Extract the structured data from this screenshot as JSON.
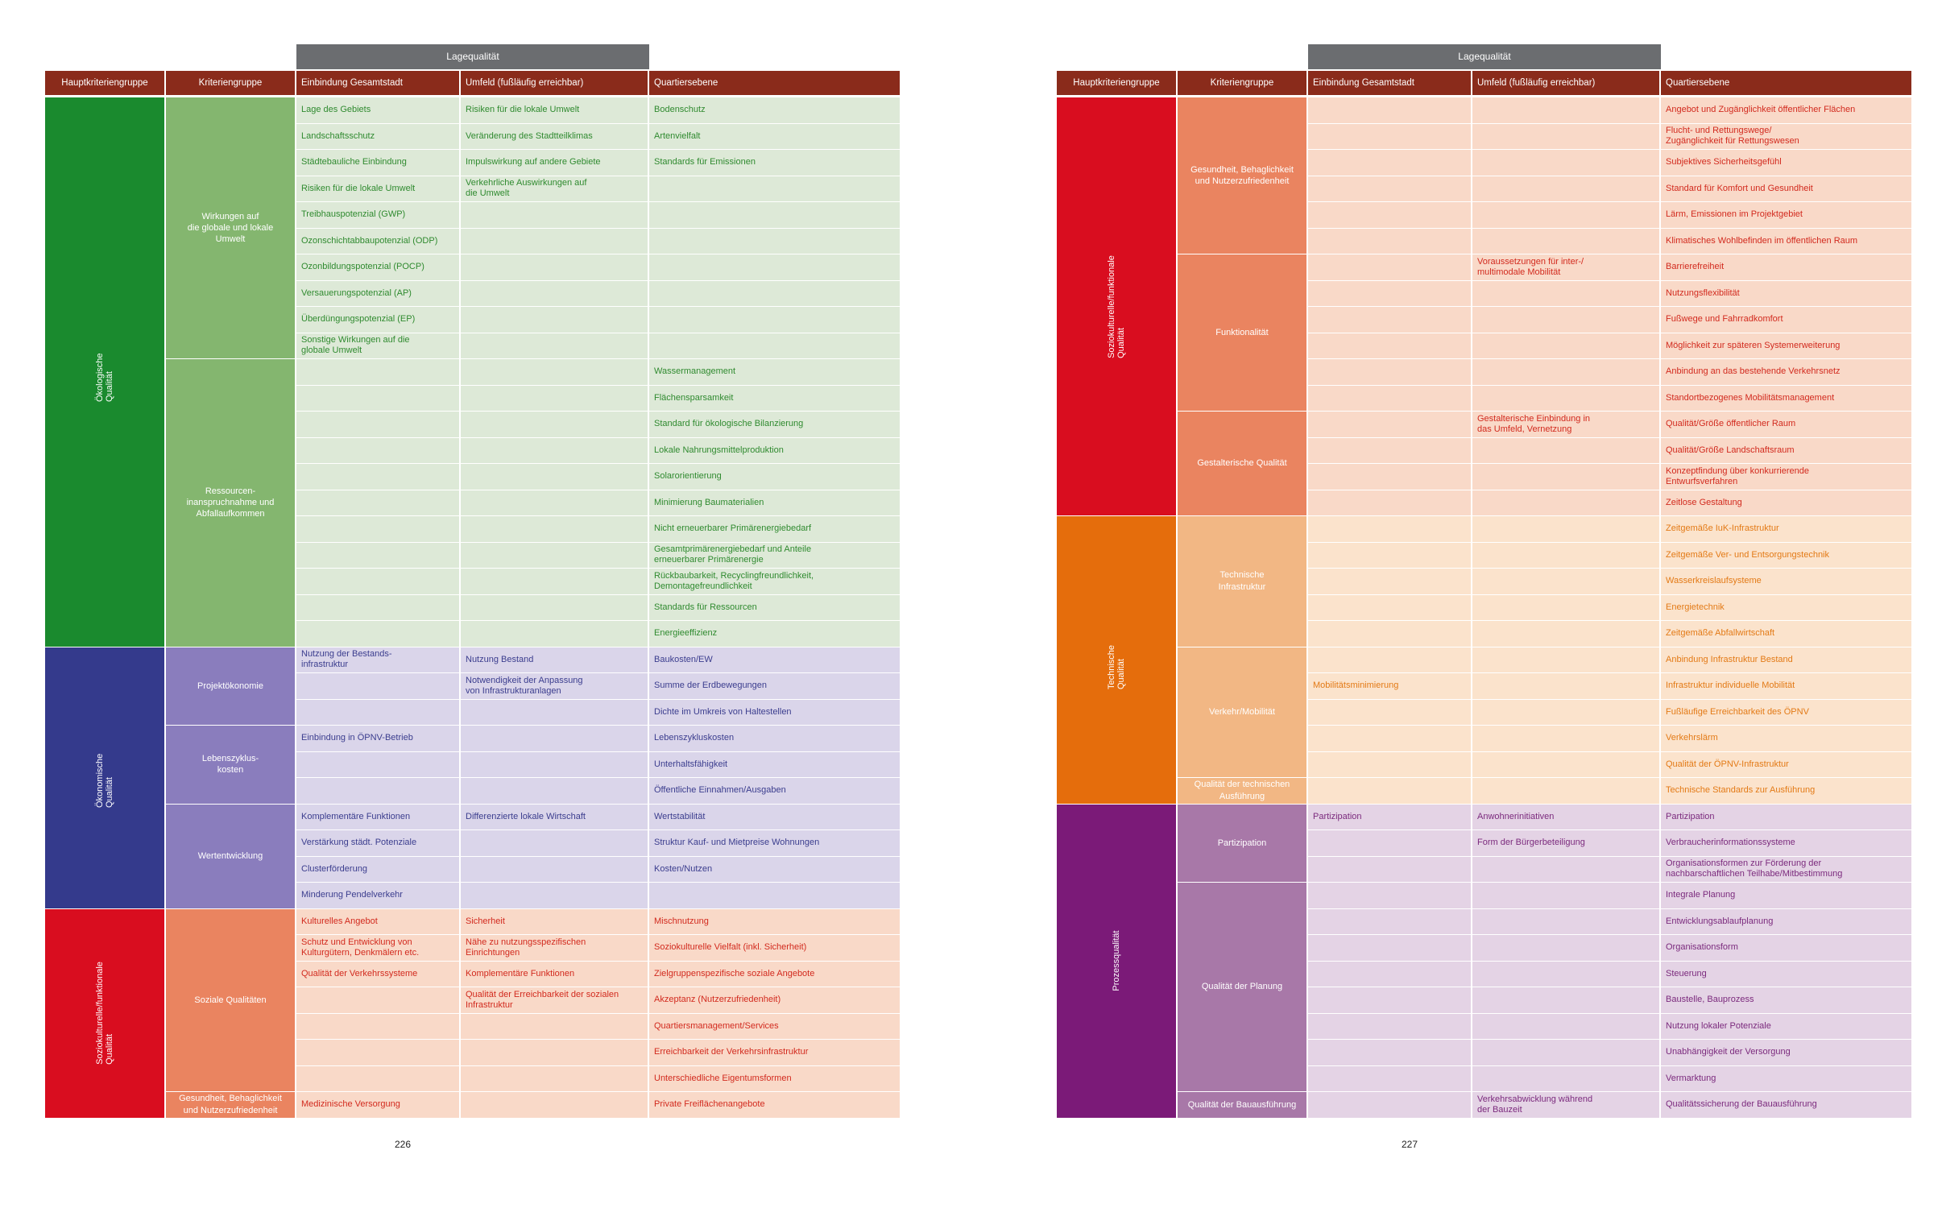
{
  "headers": {
    "lage": "Lagequalität",
    "cols": [
      "Hauptkriteriengruppe",
      "Kriteriengruppe",
      "Einbindung Gesamtstadt",
      "Umfeld (fußläufig erreichbar)",
      "Quartiersebene"
    ]
  },
  "colors": {
    "header_bg": "#8a2b1b",
    "lage_bg": "#6b6d70",
    "oeko": {
      "main": "#1a8a2e",
      "sub": "#84b66f",
      "cell": "#dde9d7",
      "text": "#2f8a2f"
    },
    "oekon": {
      "main": "#343a8c",
      "sub": "#8a7dbd",
      "cell": "#dad5ea",
      "text": "#3b3d8e"
    },
    "sozio": {
      "main": "#d90d1f",
      "sub": "#ea8460",
      "cell": "#f9d9c8",
      "text": "#d22a1e"
    },
    "tech": {
      "main": "#e56d0c",
      "sub": "#f2b784",
      "cell": "#fbe3cc",
      "text": "#e37a16"
    },
    "prozess": {
      "main": "#7b1a78",
      "sub": "#a878a8",
      "cell": "#e4d3e5",
      "text": "#7b2a7d"
    }
  },
  "pages": [
    {
      "number": "226",
      "groups": [
        {
          "name": "Ökologische Qualität",
          "theme": "oeko",
          "subgroups": [
            {
              "name": "Wirkungen auf\ndie globale und lokale\nUmwelt",
              "rows": [
                [
                  "Lage des Gebiets",
                  "Risiken für die lokale Umwelt",
                  "Bodenschutz"
                ],
                [
                  "Landschaftsschutz",
                  "Veränderung des Stadtteilklimas",
                  "Artenvielfalt"
                ],
                [
                  "Städtebauliche Einbindung",
                  "Impulswirkung auf andere Gebiete",
                  "Standards für Emissionen"
                ],
                [
                  "Risiken für die lokale Umwelt",
                  "Verkehrliche Auswirkungen auf\ndie Umwelt",
                  ""
                ],
                [
                  "Treibhauspotenzial (GWP)",
                  "",
                  ""
                ],
                [
                  "Ozonschichtabbaupotenzial (ODP)",
                  "",
                  ""
                ],
                [
                  "Ozonbildungspotenzial (POCP)",
                  "",
                  ""
                ],
                [
                  "Versauerungspotenzial (AP)",
                  "",
                  ""
                ],
                [
                  "Überdüngungspotenzial (EP)",
                  "",
                  ""
                ],
                [
                  "Sonstige Wirkungen auf die\nglobale Umwelt",
                  "",
                  ""
                ]
              ]
            },
            {
              "name": "Ressourcen-\ninanspruchnahme und\nAbfallaufkommen",
              "rows": [
                [
                  "",
                  "",
                  "Wassermanagement"
                ],
                [
                  "",
                  "",
                  "Flächensparsamkeit"
                ],
                [
                  "",
                  "",
                  "Standard für ökologische Bilanzierung"
                ],
                [
                  "",
                  "",
                  "Lokale Nahrungsmittelproduktion"
                ],
                [
                  "",
                  "",
                  "Solarorientierung"
                ],
                [
                  "",
                  "",
                  "Minimierung Baumaterialien"
                ],
                [
                  "",
                  "",
                  "Nicht erneuerbarer Primärenergiebedarf"
                ],
                [
                  "",
                  "",
                  "Gesamtprimärenergiebedarf und Anteile\nerneuerbarer Primärenergie"
                ],
                [
                  "",
                  "",
                  "Rückbaubarkeit, Recyclingfreundlichkeit,\nDemontagefreundlichkeit"
                ],
                [
                  "",
                  "",
                  "Standards für Ressourcen"
                ],
                [
                  "",
                  "",
                  "Energieeffizienz"
                ]
              ]
            }
          ]
        },
        {
          "name": "Ökonomische Qualität",
          "theme": "oekon",
          "subgroups": [
            {
              "name": "Projektökonomie",
              "rows": [
                [
                  "Nutzung der Bestands-\ninfrastruktur",
                  "Nutzung Bestand",
                  "Baukosten/EW"
                ],
                [
                  "",
                  "Notwendigkeit der Anpassung\nvon Infrastrukturanlagen",
                  "Summe der Erdbewegungen"
                ],
                [
                  "",
                  "",
                  "Dichte im Umkreis von Haltestellen"
                ]
              ]
            },
            {
              "name": "Lebenszyklus-\nkosten",
              "rows": [
                [
                  "Einbindung in ÖPNV-Betrieb",
                  "",
                  "Lebenszykluskosten"
                ],
                [
                  "",
                  "",
                  "Unterhaltsfähigkeit"
                ],
                [
                  "",
                  "",
                  "Öffentliche Einnahmen/Ausgaben"
                ]
              ]
            },
            {
              "name": "Wertentwicklung",
              "rows": [
                [
                  "Komplementäre Funktionen",
                  "Differenzierte lokale Wirtschaft",
                  "Wertstabilität"
                ],
                [
                  "Verstärkung städt. Potenziale",
                  "",
                  "Struktur Kauf- und Mietpreise Wohnungen"
                ],
                [
                  "Clusterförderung",
                  "",
                  "Kosten/Nutzen"
                ],
                [
                  "Minderung Pendelverkehr",
                  "",
                  ""
                ]
              ]
            }
          ]
        },
        {
          "name": "Soziokulturelle/funktionale Qualität",
          "theme": "sozio",
          "subgroups": [
            {
              "name": "Soziale Qualitäten",
              "rows": [
                [
                  "Kulturelles Angebot",
                  "Sicherheit",
                  "Mischnutzung"
                ],
                [
                  "Schutz und Entwicklung von\nKulturgütern, Denkmälern etc.",
                  "Nähe zu nutzungsspezifischen\nEinrichtungen",
                  "Soziokulturelle Vielfalt (inkl. Sicherheit)"
                ],
                [
                  "Qualität der Verkehrssysteme",
                  "Komplementäre Funktionen",
                  "Zielgruppenspezifische soziale Angebote"
                ],
                [
                  "",
                  "Qualität der Erreichbarkeit der sozialen\nInfrastruktur",
                  "Akzeptanz (Nutzerzufriedenheit)"
                ],
                [
                  "",
                  "",
                  "Quartiersmanagement/Services"
                ],
                [
                  "",
                  "",
                  "Erreichbarkeit der Verkehrsinfrastruktur"
                ],
                [
                  "",
                  "",
                  "Unterschiedliche Eigentumsformen"
                ]
              ]
            },
            {
              "name": "Gesundheit, Behaglichkeit\nund Nutzerzufriedenheit",
              "rows": [
                [
                  "Medizinische Versorgung",
                  "",
                  "Private Freiflächenangebote"
                ]
              ]
            }
          ]
        }
      ]
    },
    {
      "number": "227",
      "groups": [
        {
          "name": "Soziokulturelle/funktionale Qualität",
          "theme": "sozio",
          "subgroups": [
            {
              "name": "Gesundheit, Behaglichkeit\nund Nutzerzufriedenheit",
              "rows": [
                [
                  "",
                  "",
                  "Angebot und Zugänglichkeit öffentlicher Flächen"
                ],
                [
                  "",
                  "",
                  "Flucht- und Rettungswege/\nZugänglichkeit für Rettungswesen"
                ],
                [
                  "",
                  "",
                  "Subjektives Sicherheitsgefühl"
                ],
                [
                  "",
                  "",
                  "Standard für Komfort und Gesundheit"
                ],
                [
                  "",
                  "",
                  "Lärm, Emissionen im Projektgebiet"
                ],
                [
                  "",
                  "",
                  "Klimatisches Wohlbefinden im öffentlichen Raum"
                ]
              ]
            },
            {
              "name": "Funktionalität",
              "rows": [
                [
                  "",
                  "Voraussetzungen für inter-/\nmultimodale Mobilität",
                  "Barrierefreiheit"
                ],
                [
                  "",
                  "",
                  "Nutzungsflexibilität"
                ],
                [
                  "",
                  "",
                  "Fußwege und Fahrradkomfort"
                ],
                [
                  "",
                  "",
                  "Möglichkeit zur späteren Systemerweiterung"
                ],
                [
                  "",
                  "",
                  "Anbindung an das bestehende Verkehrsnetz"
                ],
                [
                  "",
                  "",
                  "Standortbezogenes Mobilitätsmanagement"
                ]
              ]
            },
            {
              "name": "Gestalterische Qualität",
              "rows": [
                [
                  "",
                  "Gestalterische Einbindung in\ndas Umfeld, Vernetzung",
                  "Qualität/Größe öffentlicher Raum"
                ],
                [
                  "",
                  "",
                  "Qualität/Größe Landschaftsraum"
                ],
                [
                  "",
                  "",
                  "Konzeptfindung über konkurrierende\nEntwurfsverfahren"
                ],
                [
                  "",
                  "",
                  "Zeitlose Gestaltung"
                ]
              ]
            }
          ]
        },
        {
          "name": "Technische Qualität",
          "theme": "tech",
          "subgroups": [
            {
              "name": "Technische\nInfrastruktur",
              "rows": [
                [
                  "",
                  "",
                  "Zeitgemäße IuK-Infrastruktur"
                ],
                [
                  "",
                  "",
                  "Zeitgemäße Ver- und Entsorgungstechnik"
                ],
                [
                  "",
                  "",
                  "Wasserkreislaufsysteme"
                ],
                [
                  "",
                  "",
                  "Energietechnik"
                ],
                [
                  "",
                  "",
                  "Zeitgemäße Abfallwirtschaft"
                ]
              ]
            },
            {
              "name": "Verkehr/Mobilität",
              "rows": [
                [
                  "",
                  "",
                  "Anbindung Infrastruktur Bestand"
                ],
                [
                  "Mobilitätsminimierung",
                  "",
                  "Infrastruktur individuelle Mobilität"
                ],
                [
                  "",
                  "",
                  "Fußläufige Erreichbarkeit des ÖPNV"
                ],
                [
                  "",
                  "",
                  "Verkehrslärm"
                ],
                [
                  "",
                  "",
                  "Qualität der ÖPNV-Infrastruktur"
                ]
              ]
            },
            {
              "name": "Qualität der technischen\nAusführung",
              "rows": [
                [
                  "",
                  "",
                  "Technische Standards zur Ausführung"
                ]
              ]
            }
          ]
        },
        {
          "name": "Prozessqualität",
          "theme": "prozess",
          "subgroups": [
            {
              "name": "Partizipation",
              "rows": [
                [
                  "Partizipation",
                  "Anwohnerinitiativen",
                  "Partizipation"
                ],
                [
                  "",
                  "Form der Bürgerbeteiligung",
                  "Verbraucherinformationssysteme"
                ],
                [
                  "",
                  "",
                  "Organisationsformen zur Förderung der\nnachbarschaftlichen Teilhabe/Mitbestimmung"
                ]
              ]
            },
            {
              "name": "Qualität der Planung",
              "rows": [
                [
                  "",
                  "",
                  "Integrale Planung"
                ],
                [
                  "",
                  "",
                  "Entwicklungsablaufplanung"
                ],
                [
                  "",
                  "",
                  "Organisationsform"
                ],
                [
                  "",
                  "",
                  "Steuerung"
                ],
                [
                  "",
                  "",
                  "Baustelle, Bauprozess"
                ],
                [
                  "",
                  "",
                  "Nutzung lokaler Potenziale"
                ],
                [
                  "",
                  "",
                  "Unabhängigkeit der Versorgung"
                ],
                [
                  "",
                  "",
                  "Vermarktung"
                ]
              ]
            },
            {
              "name": "Qualität der Bauausführung",
              "rows": [
                [
                  "",
                  "Verkehrsabwicklung während\nder Bauzeit",
                  "Qualitätssicherung der Bauausführung"
                ]
              ]
            }
          ]
        }
      ]
    }
  ]
}
